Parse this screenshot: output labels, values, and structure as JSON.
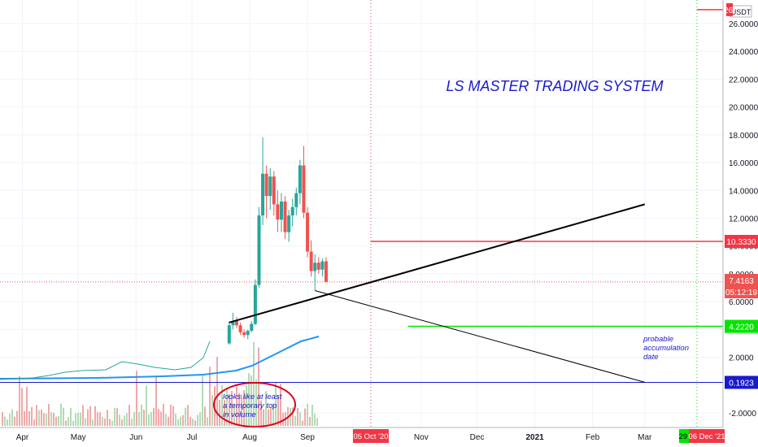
{
  "chart_data": {
    "type": "candlestick",
    "currency": "USDT",
    "title": "LS MASTER TRADING SYSTEM",
    "y_ticks": [
      "-2.0000",
      "2.0000",
      "4.0000",
      "6.0000",
      "8.0000",
      "10.0000",
      "12.0000",
      "14.0000",
      "16.0000",
      "18.0000",
      "20.0000",
      "22.0000",
      "24.0000",
      "26.0000"
    ],
    "y_tick_values": [
      -2,
      2,
      4,
      6,
      8,
      10,
      12,
      14,
      16,
      18,
      20,
      22,
      24,
      26
    ],
    "ylim": [
      -3,
      28
    ],
    "x_ticks": [
      "Apr",
      "May",
      "Jun",
      "Jul",
      "Aug",
      "Sep",
      "Nov",
      "Dec",
      "2021",
      "Feb",
      "Mar"
    ],
    "x_tick_dates": [
      "2020-04-01",
      "2020-05-01",
      "2020-06-01",
      "2020-07-01",
      "2020-08-01",
      "2020-09-01",
      "2020-11-01",
      "2020-12-01",
      "2021-01-01",
      "2021-02-01",
      "2021-03-01"
    ],
    "xlim": [
      "2020-03-20",
      "2021-04-12"
    ],
    "price_labels": [
      {
        "text": "26.",
        "value": 27.0,
        "color": "#f23645"
      },
      {
        "text": "10.3330",
        "value": 10.333,
        "color": "#f23645"
      },
      {
        "text": "7.4163",
        "value": 7.4163,
        "color": "#ef5350"
      },
      {
        "text": "05:12:19",
        "value": 6.4,
        "color": "#ef5350"
      },
      {
        "text": "4.2220",
        "value": 4.222,
        "color": "#00e600"
      },
      {
        "text": "0.1923",
        "value": 0.1923,
        "color": "#1a1acc"
      }
    ],
    "date_labels": [
      {
        "text": "05 Oct '20",
        "date": "2020-10-05",
        "color": "#f23645"
      },
      {
        "text": "29 Mar '21",
        "date": "2021-03-29",
        "color": "#00e600"
      },
      {
        "text": "06 Dec '21",
        "date": "2021-12-06",
        "color": "#f23645"
      }
    ],
    "ohlc": [
      {
        "d": "2020-07-21",
        "o": 3.0,
        "h": 4.6,
        "l": 2.9,
        "c": 4.3
      },
      {
        "d": "2020-07-23",
        "o": 4.3,
        "h": 5.2,
        "l": 4.0,
        "c": 4.6
      },
      {
        "d": "2020-07-25",
        "o": 4.6,
        "h": 4.9,
        "l": 4.1,
        "c": 4.3
      },
      {
        "d": "2020-07-27",
        "o": 4.3,
        "h": 4.5,
        "l": 3.6,
        "c": 3.8
      },
      {
        "d": "2020-07-29",
        "o": 3.8,
        "h": 4.0,
        "l": 3.4,
        "c": 3.6
      },
      {
        "d": "2020-07-31",
        "o": 3.6,
        "h": 4.0,
        "l": 3.3,
        "c": 3.9
      },
      {
        "d": "2020-08-02",
        "o": 3.9,
        "h": 4.6,
        "l": 3.8,
        "c": 4.4
      },
      {
        "d": "2020-08-04",
        "o": 4.4,
        "h": 7.6,
        "l": 4.3,
        "c": 7.2
      },
      {
        "d": "2020-08-06",
        "o": 7.2,
        "h": 12.8,
        "l": 7.0,
        "c": 12.2
      },
      {
        "d": "2020-08-08",
        "o": 12.2,
        "h": 17.8,
        "l": 11.5,
        "c": 15.2
      },
      {
        "d": "2020-08-10",
        "o": 15.2,
        "h": 15.8,
        "l": 12.0,
        "c": 13.6
      },
      {
        "d": "2020-08-12",
        "o": 13.6,
        "h": 15.6,
        "l": 12.6,
        "c": 15.0
      },
      {
        "d": "2020-08-14",
        "o": 15.0,
        "h": 15.4,
        "l": 12.2,
        "c": 13.0
      },
      {
        "d": "2020-08-16",
        "o": 13.0,
        "h": 14.0,
        "l": 11.0,
        "c": 11.9
      },
      {
        "d": "2020-08-18",
        "o": 11.9,
        "h": 13.8,
        "l": 11.0,
        "c": 13.2
      },
      {
        "d": "2020-08-20",
        "o": 13.2,
        "h": 13.6,
        "l": 10.5,
        "c": 11.0
      },
      {
        "d": "2020-08-22",
        "o": 11.0,
        "h": 12.6,
        "l": 10.3,
        "c": 12.2
      },
      {
        "d": "2020-08-24",
        "o": 12.2,
        "h": 13.4,
        "l": 11.4,
        "c": 12.8
      },
      {
        "d": "2020-08-26",
        "o": 12.8,
        "h": 14.2,
        "l": 12.2,
        "c": 13.8
      },
      {
        "d": "2020-08-28",
        "o": 13.8,
        "h": 16.2,
        "l": 13.0,
        "c": 15.8
      },
      {
        "d": "2020-08-30",
        "o": 15.8,
        "h": 17.2,
        "l": 12.0,
        "c": 12.4
      },
      {
        "d": "2020-09-01",
        "o": 12.4,
        "h": 12.8,
        "l": 9.2,
        "c": 9.6
      },
      {
        "d": "2020-09-03",
        "o": 9.6,
        "h": 10.4,
        "l": 7.8,
        "c": 8.2
      },
      {
        "d": "2020-09-05",
        "o": 8.2,
        "h": 9.4,
        "l": 6.8,
        "c": 8.8
      },
      {
        "d": "2020-09-07",
        "o": 8.8,
        "h": 9.2,
        "l": 8.0,
        "c": 8.3
      },
      {
        "d": "2020-09-09",
        "o": 8.3,
        "h": 9.1,
        "l": 7.8,
        "c": 8.9
      },
      {
        "d": "2020-09-11",
        "o": 8.9,
        "h": 9.2,
        "l": 7.4,
        "c": 7.4163
      }
    ],
    "trendline_rising": [
      {
        "d": "2020-07-21",
        "v": 4.5
      },
      {
        "d": "2021-03-01",
        "v": 13.0
      }
    ],
    "trendline_falling": [
      {
        "d": "2020-09-05",
        "v": 6.8
      },
      {
        "d": "2021-03-01",
        "v": 0.2
      }
    ],
    "annotations": [
      {
        "text": [
          "looks like at least",
          "a temporary top",
          "in volume"
        ],
        "color": "#1a1acc"
      },
      {
        "text": [
          "probable",
          "accumulation",
          "date"
        ],
        "color": "#1a1acc"
      }
    ]
  }
}
